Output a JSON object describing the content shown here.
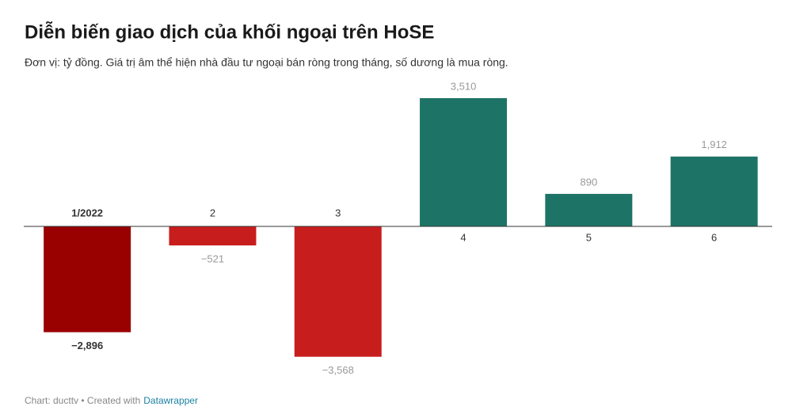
{
  "chart_data": {
    "type": "bar",
    "title": "Diễn biến giao dịch của khối ngoại trên HoSE",
    "subtitle": "Đơn vị: tỷ đồng. Giá trị âm thể hiện nhà đầu tư ngoại bán ròng trong tháng, số dương là mua ròng.",
    "categories": [
      "1/2022",
      "2",
      "3",
      "4",
      "5",
      "6"
    ],
    "values": [
      -2896,
      -521,
      -3568,
      3510,
      890,
      1912
    ],
    "value_labels": [
      "−2,896",
      "−521",
      "−3,568",
      "3,510",
      "890",
      "1,912"
    ],
    "colors": [
      "#990000",
      "#c71e1d",
      "#c71e1d",
      "#1d7466",
      "#1d7466",
      "#1d7466"
    ],
    "source": "Chart: ducttv • Created with",
    "credit": "Datawrapper"
  }
}
